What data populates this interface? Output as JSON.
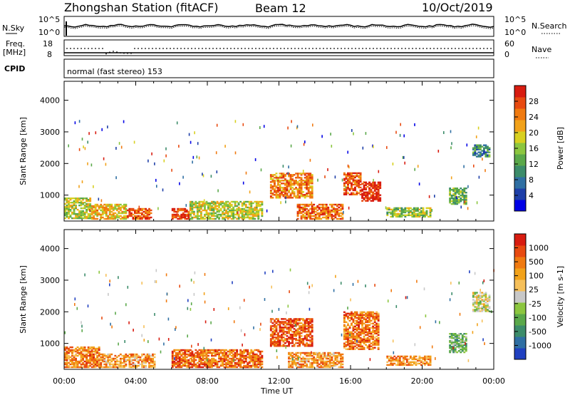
{
  "header": {
    "station": "Zhongshan Station (fitACF)",
    "beam": "Beam 12",
    "date": "10/Oct/2019"
  },
  "top_panels": {
    "nsky_label": "N.Sky",
    "nsky_ticks": [
      "10^5",
      "10^0"
    ],
    "nsearch_label": "N.Search",
    "nsearch_ticks": [
      "10^5",
      "10^0"
    ],
    "freq_label_1": "Freq.",
    "freq_label_2": "[MHz]",
    "freq_ticks": [
      "18",
      "8"
    ],
    "nave_label": "Nave",
    "nave_ticks": [
      "60",
      "0"
    ],
    "cpid_label": "CPID",
    "cpid_text": "normal (fast stereo) 153"
  },
  "chart_data": [
    {
      "type": "heatmap",
      "name": "power",
      "ylabel": "Slant Range [km]",
      "yticks": [
        "4000",
        "3000",
        "2000",
        "1000"
      ],
      "ylim": [
        180,
        4600
      ],
      "xlim": [
        0,
        24
      ],
      "colorbar_label": "Power [dB]",
      "colorbar_ticks": [
        "28",
        "24",
        "20",
        "16",
        "12",
        "8",
        "4"
      ],
      "colors": [
        "#0000e6",
        "#1e3fa8",
        "#2f6fa3",
        "#3c8c6a",
        "#5aa84a",
        "#8cc63f",
        "#d8d020",
        "#f2a21a",
        "#f07a10",
        "#e84a10",
        "#d81c10"
      ],
      "regions": [
        {
          "t": [
            0.0,
            1.5
          ],
          "r": [
            250,
            900
          ],
          "level": 0.55
        },
        {
          "t": [
            1.5,
            3.5
          ],
          "r": [
            230,
            700
          ],
          "level": 0.65
        },
        {
          "t": [
            3.5,
            4.8
          ],
          "r": [
            230,
            550
          ],
          "level": 0.85
        },
        {
          "t": [
            6.0,
            7.0
          ],
          "r": [
            230,
            550
          ],
          "level": 0.9
        },
        {
          "t": [
            7.0,
            11.0
          ],
          "r": [
            230,
            800
          ],
          "level": 0.55
        },
        {
          "t": [
            11.5,
            13.8
          ],
          "r": [
            900,
            1700
          ],
          "level": 0.75
        },
        {
          "t": [
            13.0,
            15.5
          ],
          "r": [
            230,
            700
          ],
          "level": 0.8
        },
        {
          "t": [
            15.6,
            16.6
          ],
          "r": [
            1000,
            1700
          ],
          "level": 0.85
        },
        {
          "t": [
            16.6,
            17.7
          ],
          "r": [
            800,
            1400
          ],
          "level": 0.95
        },
        {
          "t": [
            18.0,
            20.5
          ],
          "r": [
            300,
            600
          ],
          "level": 0.5
        },
        {
          "t": [
            21.5,
            22.5
          ],
          "r": [
            700,
            1200
          ],
          "level": 0.45
        },
        {
          "t": [
            22.8,
            23.8
          ],
          "r": [
            2200,
            2600
          ],
          "level": 0.3
        }
      ],
      "xticks": [
        "00:00",
        "04:00",
        "08:00",
        "12:00",
        "16:00",
        "20:00",
        "00:00"
      ]
    },
    {
      "type": "heatmap",
      "name": "velocity",
      "ylabel": "Slant Range [km]",
      "yticks": [
        "4000",
        "3000",
        "2000",
        "1000"
      ],
      "ylim": [
        180,
        4600
      ],
      "xlim": [
        0,
        24
      ],
      "colorbar_label": "Velocity [m s-1]",
      "colorbar_ticks": [
        "1000",
        "500",
        "100",
        "25",
        "-25",
        "-100",
        "-500",
        "-1000"
      ],
      "colors": [
        "#2040c0",
        "#2f6fa3",
        "#3c8c6a",
        "#5aa84a",
        "#8cc63f",
        "#c8c8c8",
        "#f6c05a",
        "#f2a21a",
        "#f07a10",
        "#e84a10",
        "#d81c10"
      ],
      "regions": [
        {
          "t": [
            0.0,
            2.0
          ],
          "r": [
            230,
            900
          ],
          "level": 0.75
        },
        {
          "t": [
            2.0,
            5.0
          ],
          "r": [
            230,
            650
          ],
          "level": 0.7
        },
        {
          "t": [
            6.0,
            11.0
          ],
          "r": [
            230,
            800
          ],
          "level": 0.8
        },
        {
          "t": [
            11.5,
            13.8
          ],
          "r": [
            900,
            1800
          ],
          "level": 0.85
        },
        {
          "t": [
            12.5,
            15.5
          ],
          "r": [
            230,
            700
          ],
          "level": 0.7
        },
        {
          "t": [
            15.6,
            17.6
          ],
          "r": [
            800,
            2000
          ],
          "level": 0.78
        },
        {
          "t": [
            18.0,
            20.5
          ],
          "r": [
            300,
            600
          ],
          "level": 0.72
        },
        {
          "t": [
            21.5,
            22.5
          ],
          "r": [
            700,
            1300
          ],
          "level": 0.35
        },
        {
          "t": [
            22.8,
            23.8
          ],
          "r": [
            2000,
            2600
          ],
          "level": 0.5
        }
      ],
      "xticks": [
        "00:00",
        "04:00",
        "08:00",
        "12:00",
        "16:00",
        "20:00",
        "00:00"
      ],
      "xlabel": "Time UT"
    }
  ]
}
